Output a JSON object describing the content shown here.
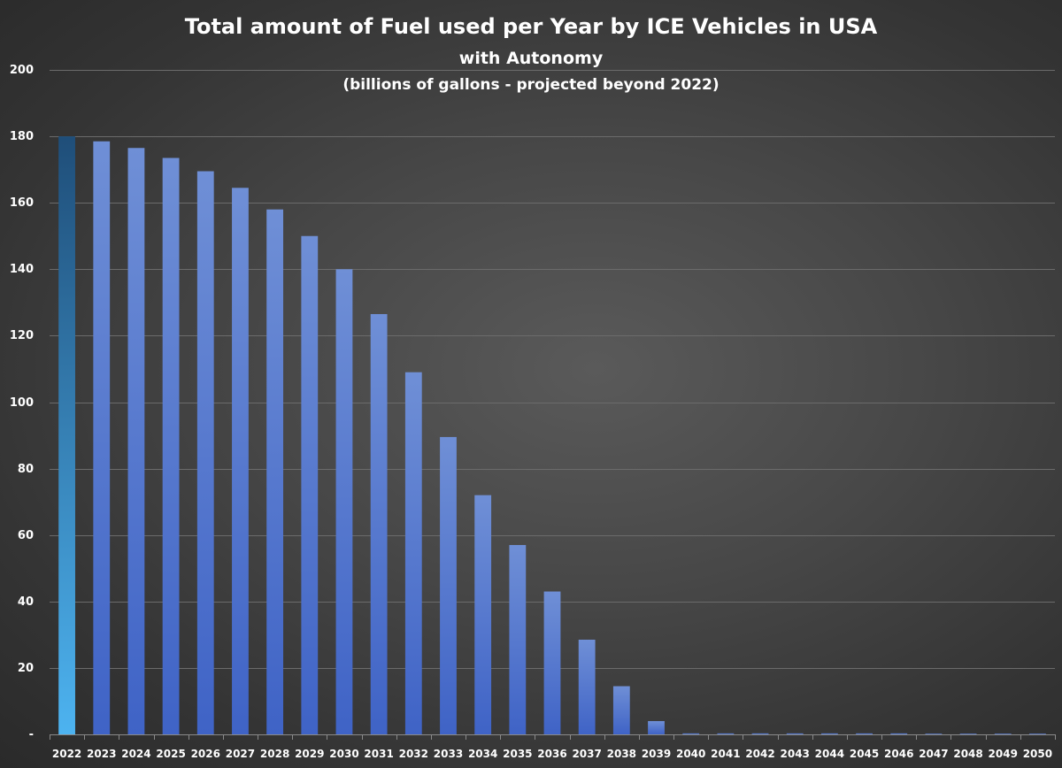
{
  "chart_data": {
    "type": "bar",
    "title": "Total amount of Fuel used per Year by ICE Vehicles in USA",
    "subtitle": "with Autonomy",
    "subtitle2": "(billions of gallons - projected beyond 2022)",
    "xlabel": "",
    "ylabel": "",
    "ylim": [
      0,
      200
    ],
    "yticks": [
      0,
      20,
      40,
      60,
      80,
      100,
      120,
      140,
      160,
      180,
      200
    ],
    "ytick_labels": [
      "-",
      "20",
      "40",
      "60",
      "80",
      "100",
      "120",
      "140",
      "160",
      "180",
      "200"
    ],
    "grid": true,
    "legend": "none",
    "categories": [
      "2022",
      "2023",
      "2024",
      "2025",
      "2026",
      "2027",
      "2028",
      "2029",
      "2030",
      "2031",
      "2032",
      "2033",
      "2034",
      "2035",
      "2036",
      "2037",
      "2038",
      "2039",
      "2040",
      "2041",
      "2042",
      "2043",
      "2044",
      "2045",
      "2046",
      "2047",
      "2048",
      "2049",
      "2050"
    ],
    "values": [
      180,
      178.5,
      176.5,
      173.5,
      169.5,
      164.5,
      158,
      150,
      140,
      126.5,
      109,
      89.5,
      72,
      57,
      43,
      28.5,
      14.5,
      4,
      0.3,
      0.3,
      0.3,
      0.3,
      0.3,
      0.3,
      0.3,
      0.2,
      0.2,
      0.2,
      0.2
    ],
    "colors": {
      "first_bar_top": "#1f4e79",
      "first_bar_bottom": "#4db3f0",
      "bar_top": "#6f8fd6",
      "bar_bottom": "#3f63c6",
      "text": "#ffffff",
      "grid": "#6b6b6b"
    }
  }
}
